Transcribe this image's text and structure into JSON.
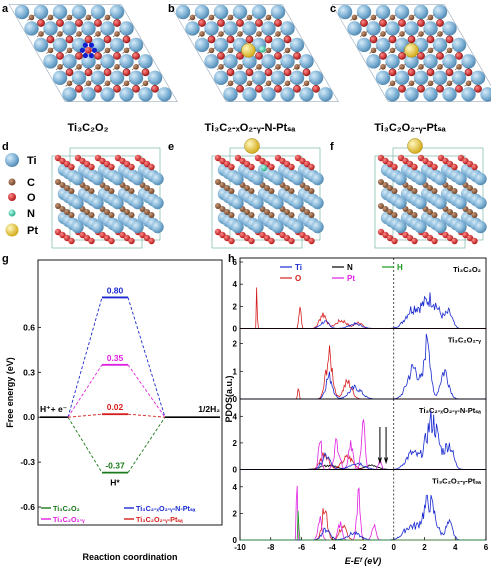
{
  "panels": {
    "a": {
      "letter": "a",
      "caption": "Ti₃C₂O₂"
    },
    "b": {
      "letter": "b",
      "caption": "Ti₃C₂-ₓO₂-ᵧ-N-Ptₛₐ"
    },
    "c": {
      "letter": "c",
      "caption": "Ti₃C₂O₂-ᵧ-Ptₛₐ"
    },
    "d": {
      "letter": "d"
    },
    "e": {
      "letter": "e"
    },
    "f": {
      "letter": "f"
    },
    "g": {
      "letter": "g"
    },
    "h": {
      "letter": "h"
    }
  },
  "legend_atoms": [
    {
      "label": "Ti",
      "color": "#7fb2d6"
    },
    {
      "label": "C",
      "color": "#8a5a3c"
    },
    {
      "label": "O",
      "color": "#d62020"
    },
    {
      "label": "N",
      "color": "#3dd6a8"
    },
    {
      "label": "Pt",
      "color": "#f0d030"
    }
  ],
  "atom_colors": {
    "ti": "#7fb2d6",
    "c": "#8a5a3c",
    "o": "#d62020",
    "n": "#3dd6a8",
    "pt": "#f0d030",
    "blue": "#1020d0"
  },
  "chart_data": [
    {
      "type": "line",
      "panel": "g",
      "ylabel": "Free energy (eV)",
      "xlabel": "Reaction coordination",
      "ylim": [
        -0.72,
        1.05
      ],
      "yticks": [
        0.6,
        0.3,
        0.0,
        -0.3,
        -0.6
      ],
      "ytick_labels": [
        "0.6",
        "0.3",
        "0.0",
        "-0.3",
        "-0.6"
      ],
      "state_labels": {
        "initial": "H⁺+ e⁻",
        "intermediate": "H*",
        "final": "1/2H₂"
      },
      "series": [
        {
          "name": "Ti₃C₂O₂",
          "dG": -0.37,
          "label": "-0.37",
          "color": "#1a7a1a"
        },
        {
          "name": "Ti₃C₂-ₓO₂-ᵧ-N-Ptₛₐ",
          "dG": 0.8,
          "label": "0.80",
          "color": "#1a2ad0"
        },
        {
          "name": "Ti₃C₂O₂-ᵧ",
          "dG": 0.35,
          "label": "0.35",
          "color": "#e020e0"
        },
        {
          "name": "Ti₃C₂O₂-ᵧ-Ptₛₐ",
          "dG": 0.02,
          "label": "0.02",
          "color": "#d62020"
        }
      ]
    },
    {
      "type": "line",
      "panel": "h",
      "ylabel": "PDOS(a.u.)",
      "xlabel": "E-Eᶠ (eV)",
      "xlim": [
        -10,
        6
      ],
      "xticks": [
        -10,
        -8,
        -6,
        -4,
        -2,
        0,
        2,
        4,
        6
      ],
      "legend": [
        {
          "name": "Ti",
          "color": "#1a2ad0"
        },
        {
          "name": "N",
          "color": "#000000"
        },
        {
          "name": "H",
          "color": "#1a9a1a"
        },
        {
          "name": "O",
          "color": "#d62020"
        },
        {
          "name": "Pt",
          "color": "#e020e0"
        }
      ],
      "subplots": [
        {
          "title": "Ti₃C₂O₂",
          "ylim": [
            0,
            6
          ],
          "yticks": [
            0,
            2,
            4,
            6
          ]
        },
        {
          "title": "Ti₃C₂O₂-ᵧ",
          "ylim": [
            0,
            2.4
          ],
          "yticks": [
            0,
            1,
            2
          ]
        },
        {
          "title": "Ti₃C₂-ₓO₂-ᵧ-N-Ptₛₐ",
          "ylim": [
            0,
            5
          ],
          "yticks": [
            0,
            2,
            4
          ]
        },
        {
          "title": "Ti₃C₂O₂-ᵧ-Ptₛₐ",
          "ylim": [
            0,
            5
          ],
          "yticks": [
            0,
            2,
            4
          ]
        }
      ]
    }
  ]
}
